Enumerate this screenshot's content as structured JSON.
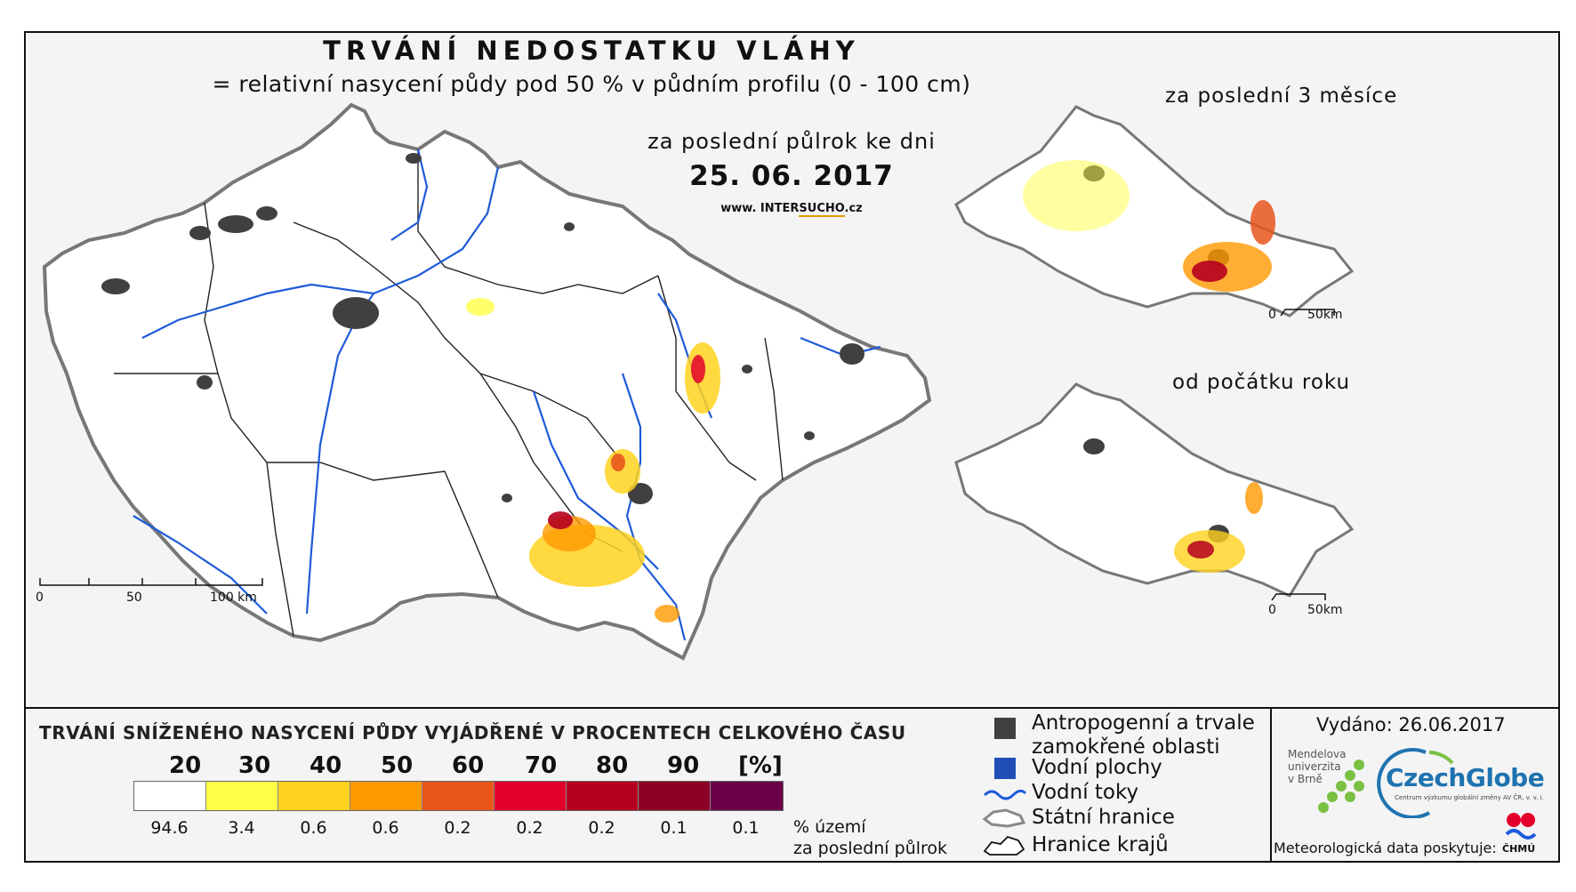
{
  "map": {
    "title": "TRVÁNÍ NEDOSTATKU VLÁHY",
    "subtitle": "= relativní nasycení půdy pod 50 % v půdním profilu (0 - 100 cm)",
    "period_label": "za poslední půlrok ke dni",
    "date": "25. 06. 2017",
    "website_prefix": "www. INTER",
    "website_brand": "SUCHO",
    "website_suffix": ".cz",
    "scale": [
      "0",
      "50",
      "100 km"
    ],
    "inset_3m": {
      "label": "za poslední 3 měsíce",
      "scale": [
        "0",
        "50km"
      ]
    },
    "inset_ytd": {
      "label": "od počátku roku",
      "scale": [
        "0",
        "50km"
      ]
    }
  },
  "legend": {
    "title": "TRVÁNÍ SNÍŽENÉHO NASYCENÍ PŮDY VYJÁDŘENÉ V PROCENTECH CELKOVÉHO ČASU",
    "ticks": [
      "20",
      "30",
      "40",
      "50",
      "60",
      "70",
      "80",
      "90",
      "[%]"
    ],
    "classes": [
      {
        "color": "#ffffff",
        "pct": "94.6"
      },
      {
        "color": "#ffff46",
        "pct": "3.4"
      },
      {
        "color": "#ffd21e",
        "pct": "0.6"
      },
      {
        "color": "#ff9900",
        "pct": "0.6"
      },
      {
        "color": "#e8561c",
        "pct": "0.2"
      },
      {
        "color": "#e3002a",
        "pct": "0.2"
      },
      {
        "color": "#b5001f",
        "pct": "0.2"
      },
      {
        "color": "#8c0026",
        "pct": "0.1"
      },
      {
        "color": "#6b0048",
        "pct": "0.1"
      }
    ],
    "pct_caption_line1": "% území",
    "pct_caption_line2": "za poslední půlrok",
    "key": {
      "anthropogenic": "Antropogenní a trvale",
      "anthropogenic_2": "zamokřené oblasti",
      "water_areas": "Vodní plochy",
      "rivers": "Vodní toky",
      "border": "Státní hranice",
      "regions": "Hranice krajů"
    },
    "colors": {
      "anthropogenic": "#404040",
      "water": "#1f4fb5",
      "river": "#1e5bd8"
    }
  },
  "footer": {
    "issued": "Vydáno: 26.06.2017",
    "mendel_1": "Mendelova",
    "mendel_2": "univerzita",
    "mendel_3": "v Brně",
    "czechglobe": "CzechGlobe",
    "czechglobe_sub": "Centrum výzkumu globální změny AV ČR, v. v. i.",
    "provider": "Meteorologická data poskytuje:",
    "chmu": "ČHMÚ"
  }
}
